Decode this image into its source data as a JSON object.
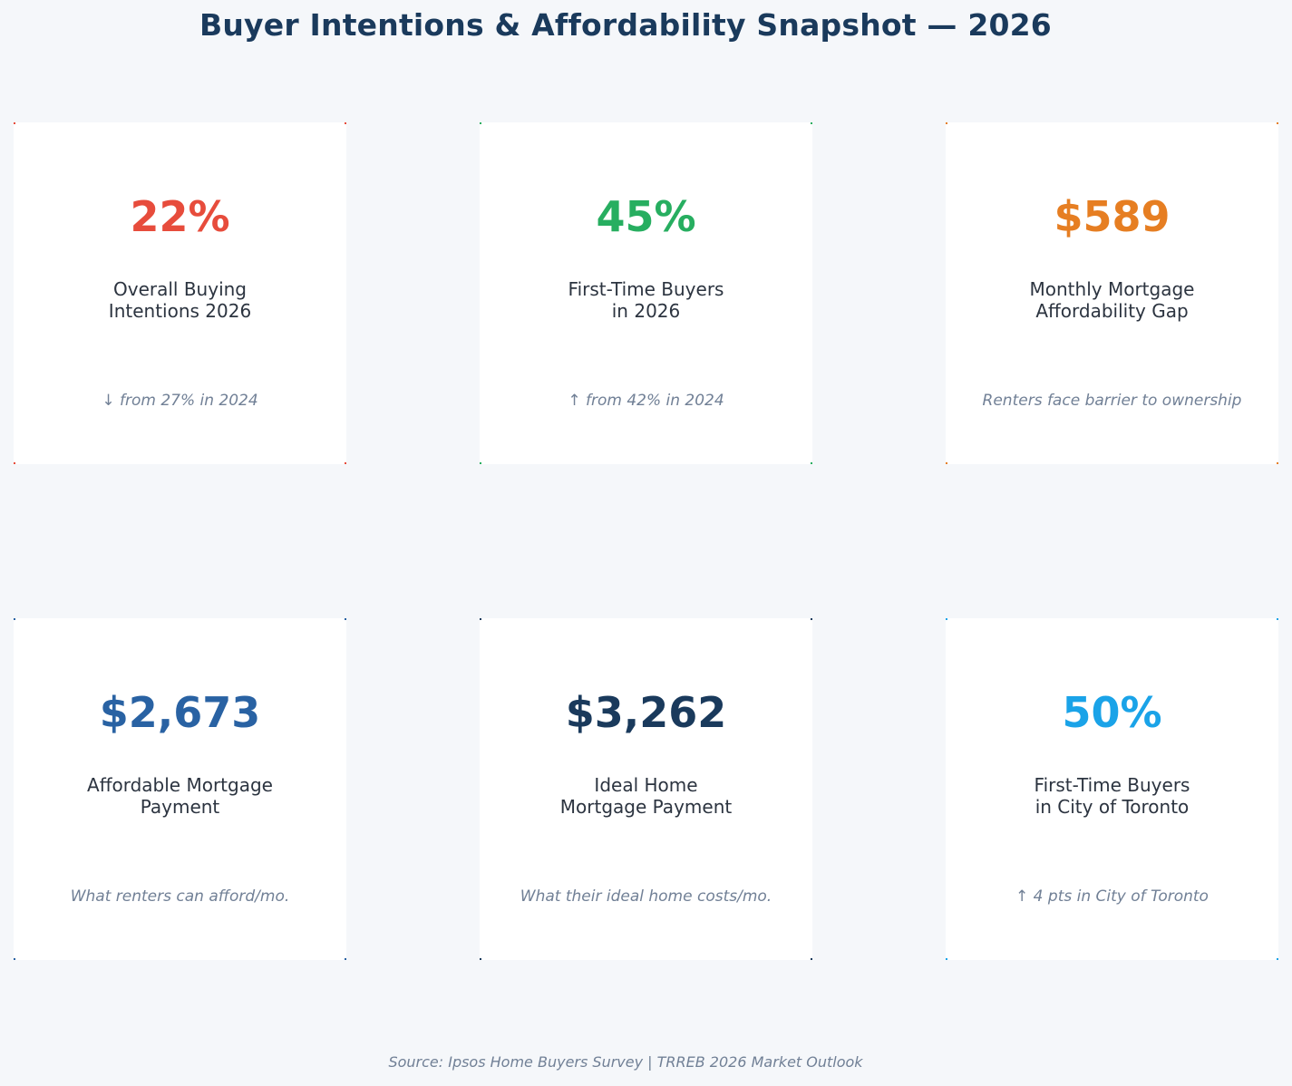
{
  "title": "Buyer Intentions & Affordability Snapshot — 2026",
  "source": "Source: Ipsos Home Buyers Survey | TRREB 2026 Market Outlook",
  "chart_data": {
    "type": "table",
    "cards": [
      {
        "value": "22%",
        "label": "Overall Buying\nIntentions 2026",
        "note": "↓ from 27% in 2024",
        "color": "#e74c3c"
      },
      {
        "value": "45%",
        "label": "First-Time Buyers\nin 2026",
        "note": "↑ from 42% in 2024",
        "color": "#27ae60"
      },
      {
        "value": "$589",
        "label": "Monthly Mortgage\nAffordability Gap",
        "note": "Renters face barrier to ownership",
        "color": "#e67e22"
      },
      {
        "value": "$2,673",
        "label": "Affordable Mortgage\nPayment",
        "note": "What renters can afford/mo.",
        "color": "#2962a3"
      },
      {
        "value": "$3,262",
        "label": "Ideal Home\nMortgage Payment",
        "note": "What their ideal home costs/mo.",
        "color": "#1a3a5c"
      },
      {
        "value": "50%",
        "label": "First-Time Buyers\nin City of Toronto",
        "note": "↑ 4 pts in City of Toronto",
        "color": "#1aa3e8"
      }
    ]
  }
}
